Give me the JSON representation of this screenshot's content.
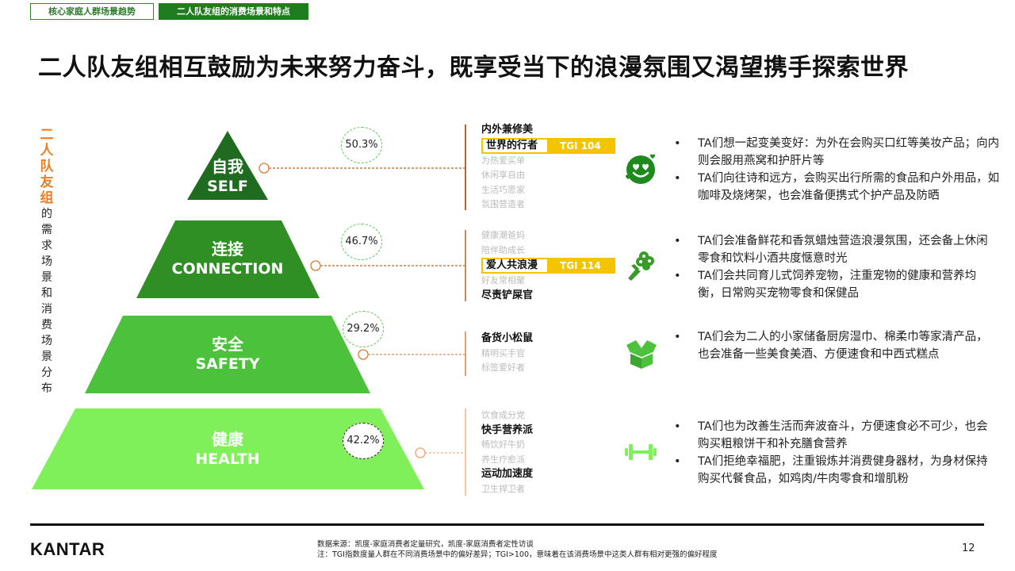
{
  "tabs": [
    {
      "label": "核心家庭人群场景趋势",
      "active": false
    },
    {
      "label": "二人队友组的消费场景和特点",
      "active": true
    }
  ],
  "title": "二人队友组相互鼓励为未来努力奋斗，既享受当下的浪漫氛围又渴望携手探索世界",
  "vertical_label": {
    "accent": [
      "二",
      "人",
      "队",
      "友",
      "组"
    ],
    "rest": [
      "的",
      "需",
      "求",
      "场",
      "景",
      "和",
      "消",
      "费",
      "场",
      "景",
      "分",
      "布"
    ]
  },
  "colors": {
    "accent": "#f07c23",
    "tier_self": "#1f6b1f",
    "tier_connection": "#2f8f24",
    "tier_safety": "#4cc13c",
    "tier_health": "#7ff05a",
    "highlight": "#f5c400"
  },
  "tiers": [
    {
      "zh": "自我",
      "en": "SELF",
      "pct": "50.3%",
      "scenes": [
        {
          "text": "内外兼修美",
          "style": "bold"
        },
        {
          "text": "世界的行者",
          "style": "hl",
          "tgi": "TGI 104"
        },
        {
          "text": "为热爱买单",
          "style": "dim"
        },
        {
          "text": "休闲享自由",
          "style": "dim"
        },
        {
          "text": "生活巧思家",
          "style": "dim"
        },
        {
          "text": "氛围营造者",
          "style": "dim"
        }
      ],
      "icon": "smiling-face-with-hearts-icon",
      "bullets": [
        "TA们想一起变美变好：为外在会购买口红等美妆产品；向内则会服用燕窝和护肝片等",
        "TA们向往诗和远方，会购买出行所需的食品和户外用品，如咖啡及烧烤架，也会准备便携式个护产品及防晒"
      ]
    },
    {
      "zh": "连接",
      "en": "CONNECTION",
      "pct": "46.7%",
      "scenes": [
        {
          "text": "健康潮爸妈",
          "style": "dim"
        },
        {
          "text": "陪伴助成长",
          "style": "dim"
        },
        {
          "text": "爱人共浪漫",
          "style": "hl",
          "tgi": "TGI 114"
        },
        {
          "text": "好友常相聚",
          "style": "dim"
        },
        {
          "text": "尽责铲屎官",
          "style": "bold"
        }
      ],
      "icon": "flower-bouquet-icon",
      "bullets": [
        "TA们会准备鲜花和香氛蜡烛营造浪漫氛围，还会备上休闲零食和饮料小酒共度惬意时光",
        "TA们会共同育儿式饲养宠物，注重宠物的健康和营养均衡，日常购买宠物零食和保健品"
      ]
    },
    {
      "zh": "安全",
      "en": "SAFETY",
      "pct": "29.2%",
      "scenes": [
        {
          "text": "备货小松鼠",
          "style": "bold"
        },
        {
          "text": "精明买手官",
          "style": "dim"
        },
        {
          "text": "标签爱好者",
          "style": "dim"
        }
      ],
      "icon": "open-box-icon",
      "bullets": [
        "TA们会为二人的小家储备厨房湿巾、棉柔巾等家清产品，也会准备一些美食美酒、方便速食和中西式糕点"
      ]
    },
    {
      "zh": "健康",
      "en": "HEALTH",
      "pct": "42.2%",
      "scenes": [
        {
          "text": "饮食成分党",
          "style": "dim"
        },
        {
          "text": "快手营养派",
          "style": "bold"
        },
        {
          "text": "畅饮好牛奶",
          "style": "dim"
        },
        {
          "text": "养生疗愈派",
          "style": "dim"
        },
        {
          "text": "运动加速度",
          "style": "bold"
        },
        {
          "text": "卫生捍卫者",
          "style": "dim"
        }
      ],
      "icon": "dumbbell-icon",
      "bullets": [
        "TA们也为改善生活而奔波奋斗，方便速食必不可少，也会购买粗粮饼干和补充膳食营养",
        "TA们拒绝幸福肥，注重锻炼并消费健身器材，为身材保持购买代餐食品，如鸡肉/牛肉零食和增肌粉"
      ]
    }
  ],
  "footer": {
    "logo": "KANTAR",
    "source": "数据来源：凯度-家庭消费者定量研究，凯度-家庭消费者定性访谈",
    "note": "注：TGI指数度量人群在不同消费场景中的偏好差异；TGI>100，意味着在该消费场景中这类人群有相对更强的偏好程度",
    "page": "12"
  }
}
